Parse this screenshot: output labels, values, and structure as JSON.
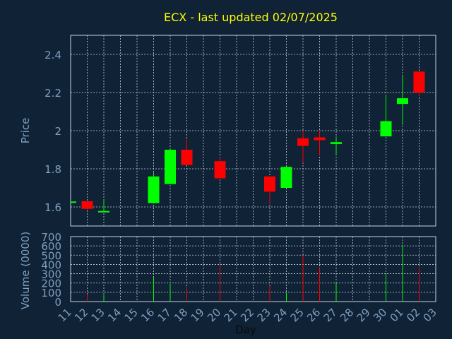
{
  "chart_data": {
    "type": "candlestick",
    "title": "ECX - last updated 02/07/2025",
    "xlabel": "Day",
    "price_panel": {
      "ylabel": "Price",
      "ylim": [
        1.5,
        2.5
      ],
      "yticks": [
        "1.6",
        "1.8",
        "2",
        "2.2",
        "2.4"
      ],
      "ytick_values": [
        1.6,
        1.8,
        2.0,
        2.2,
        2.4
      ]
    },
    "volume_panel": {
      "ylabel": "Volume (0000)",
      "ylim": [
        0,
        700
      ],
      "yticks": [
        "0",
        "100",
        "200",
        "300",
        "400",
        "500",
        "600",
        "700"
      ],
      "ytick_values": [
        0,
        100,
        200,
        300,
        400,
        500,
        600,
        700
      ]
    },
    "xticks": [
      "11",
      "12",
      "13",
      "14",
      "15",
      "16",
      "17",
      "18",
      "19",
      "20",
      "21",
      "22",
      "23",
      "24",
      "25",
      "26",
      "27",
      "28",
      "29",
      "30",
      "01",
      "02",
      "03"
    ],
    "candles": [
      {
        "day": 0,
        "open": 1.625,
        "high": 1.625,
        "low": 1.625,
        "close": 1.625,
        "volume": 0
      },
      {
        "day": 1,
        "open": 1.63,
        "high": 1.63,
        "low": 1.58,
        "close": 1.59,
        "volume": 80
      },
      {
        "day": 2,
        "open": 1.575,
        "high": 1.64,
        "low": 1.575,
        "close": 1.575,
        "volume": 70
      },
      {
        "day": 5,
        "open": 1.62,
        "high": 1.78,
        "low": 1.62,
        "close": 1.76,
        "volume": 265
      },
      {
        "day": 6,
        "open": 1.72,
        "high": 1.9,
        "low": 1.72,
        "close": 1.9,
        "volume": 190
      },
      {
        "day": 7,
        "open": 1.9,
        "high": 1.96,
        "low": 1.82,
        "close": 1.82,
        "volume": 160
      },
      {
        "day": 9,
        "open": 1.84,
        "high": 1.86,
        "low": 1.75,
        "close": 1.75,
        "volume": 400
      },
      {
        "day": 12,
        "open": 1.76,
        "high": 1.76,
        "low": 1.62,
        "close": 1.68,
        "volume": 170
      },
      {
        "day": 13,
        "open": 1.7,
        "high": 1.81,
        "low": 1.7,
        "close": 1.81,
        "volume": 100
      },
      {
        "day": 14,
        "open": 1.96,
        "high": 2.0,
        "low": 1.83,
        "close": 1.92,
        "volume": 500
      },
      {
        "day": 15,
        "open": 1.965,
        "high": 2.0,
        "low": 1.87,
        "close": 1.95,
        "volume": 360
      },
      {
        "day": 16,
        "open": 1.93,
        "high": 1.97,
        "low": 1.87,
        "close": 1.94,
        "volume": 200
      },
      {
        "day": 19,
        "open": 1.97,
        "high": 2.19,
        "low": 1.97,
        "close": 2.05,
        "volume": 300
      },
      {
        "day": 20,
        "open": 2.14,
        "high": 2.29,
        "low": 2.03,
        "close": 2.17,
        "volume": 610
      },
      {
        "day": 21,
        "open": 2.31,
        "high": 2.31,
        "low": 2.18,
        "close": 2.2,
        "volume": 370
      }
    ],
    "colors": {
      "background": "#0f2236",
      "plot_border": "#c8d2dc",
      "grid": "#c8d2dc",
      "axis_text": "#7f9fbf",
      "title": "#ffff00",
      "up": "#00ff00",
      "down": "#ff0000"
    },
    "grid": true,
    "legend": "none"
  }
}
